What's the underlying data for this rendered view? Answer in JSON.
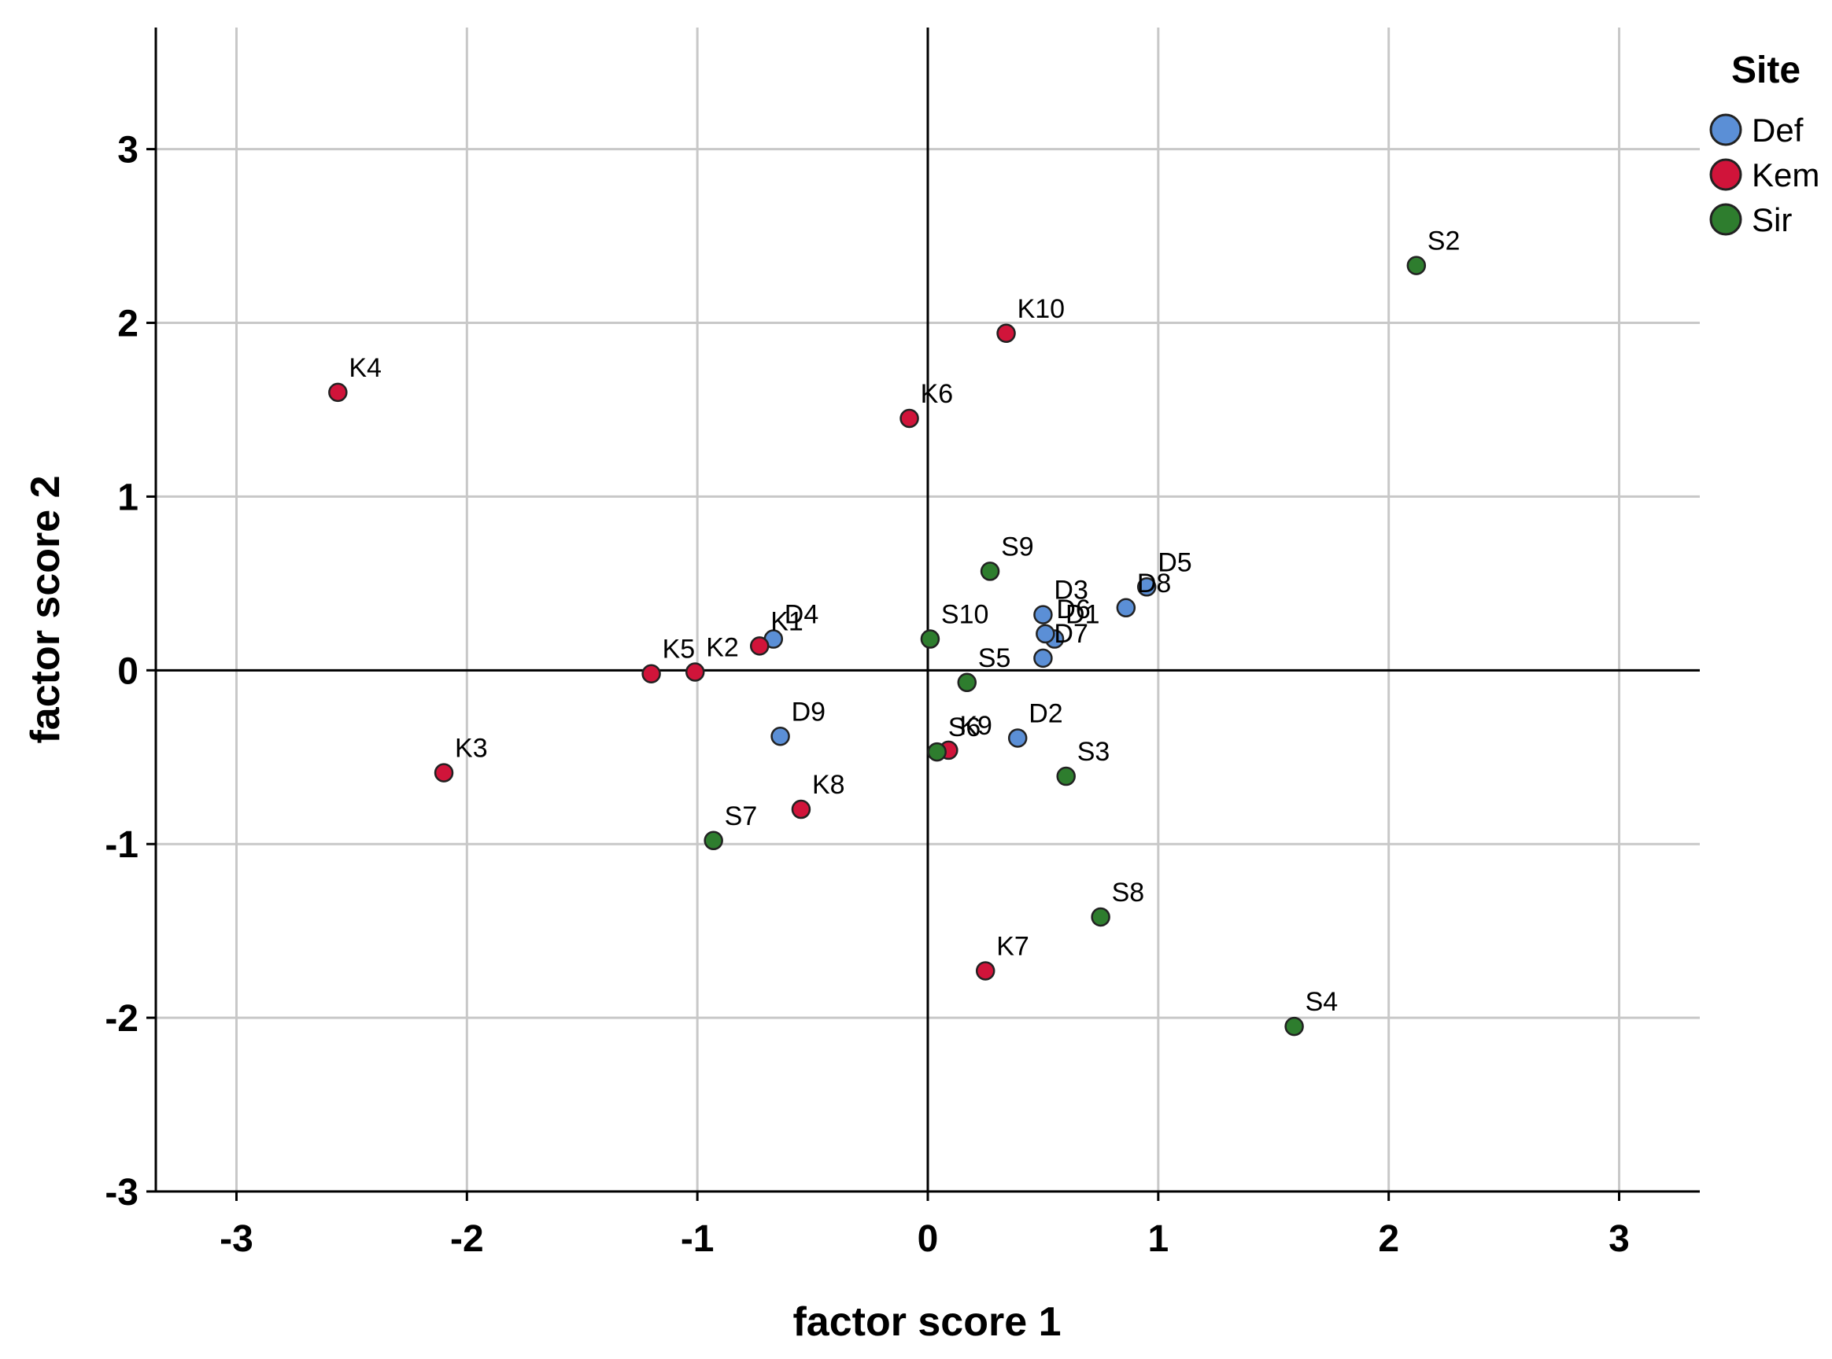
{
  "chart_data": {
    "type": "scatter",
    "xlabel": "factor score   1",
    "ylabel": "factor score   2",
    "xlim": [
      -3.35,
      3.35
    ],
    "ylim": [
      -3.0,
      3.7
    ],
    "xticks": [
      -3,
      -2,
      -1,
      0,
      1,
      2,
      3
    ],
    "yticks": [
      -3,
      -2,
      -1,
      0,
      1,
      2,
      3
    ],
    "grid": true,
    "reference_lines": {
      "x": 0,
      "y": 0
    },
    "legend": {
      "title": "Site",
      "position": "top-right"
    },
    "series": [
      {
        "name": "Def",
        "color": "#5b8fd6",
        "points": [
          {
            "label": "D1",
            "x": 0.55,
            "y": 0.18
          },
          {
            "label": "D2",
            "x": 0.39,
            "y": -0.39
          },
          {
            "label": "D3",
            "x": 0.5,
            "y": 0.32
          },
          {
            "label": "D4",
            "x": -0.67,
            "y": 0.18
          },
          {
            "label": "D5",
            "x": 0.95,
            "y": 0.48
          },
          {
            "label": "D6",
            "x": 0.51,
            "y": 0.21
          },
          {
            "label": "D7",
            "x": 0.5,
            "y": 0.07
          },
          {
            "label": "D8",
            "x": 0.86,
            "y": 0.36
          },
          {
            "label": "D9",
            "x": -0.64,
            "y": -0.38
          }
        ]
      },
      {
        "name": "Kem",
        "color": "#d0143a",
        "points": [
          {
            "label": "K1",
            "x": -0.73,
            "y": 0.14
          },
          {
            "label": "K2",
            "x": -1.01,
            "y": -0.01
          },
          {
            "label": "K3",
            "x": -2.1,
            "y": -0.59
          },
          {
            "label": "K4",
            "x": -2.56,
            "y": 1.6
          },
          {
            "label": "K5",
            "x": -1.2,
            "y": -0.02
          },
          {
            "label": "K6",
            "x": -0.08,
            "y": 1.45
          },
          {
            "label": "K7",
            "x": 0.25,
            "y": -1.73
          },
          {
            "label": "K8",
            "x": -0.55,
            "y": -0.8
          },
          {
            "label": "K9",
            "x": 0.09,
            "y": -0.46
          },
          {
            "label": "K10",
            "x": 0.34,
            "y": 1.94
          }
        ]
      },
      {
        "name": "Sir",
        "color": "#2e7d2e",
        "points": [
          {
            "label": "S2",
            "x": 2.12,
            "y": 2.33
          },
          {
            "label": "S3",
            "x": 0.6,
            "y": -0.61
          },
          {
            "label": "S4",
            "x": 1.59,
            "y": -2.05
          },
          {
            "label": "S5",
            "x": 0.17,
            "y": -0.07
          },
          {
            "label": "S6",
            "x": 0.04,
            "y": -0.47
          },
          {
            "label": "S7",
            "x": -0.93,
            "y": -0.98
          },
          {
            "label": "S8",
            "x": 0.75,
            "y": -1.42
          },
          {
            "label": "S9",
            "x": 0.27,
            "y": 0.57
          },
          {
            "label": "S10",
            "x": 0.01,
            "y": 0.18
          }
        ]
      }
    ]
  }
}
